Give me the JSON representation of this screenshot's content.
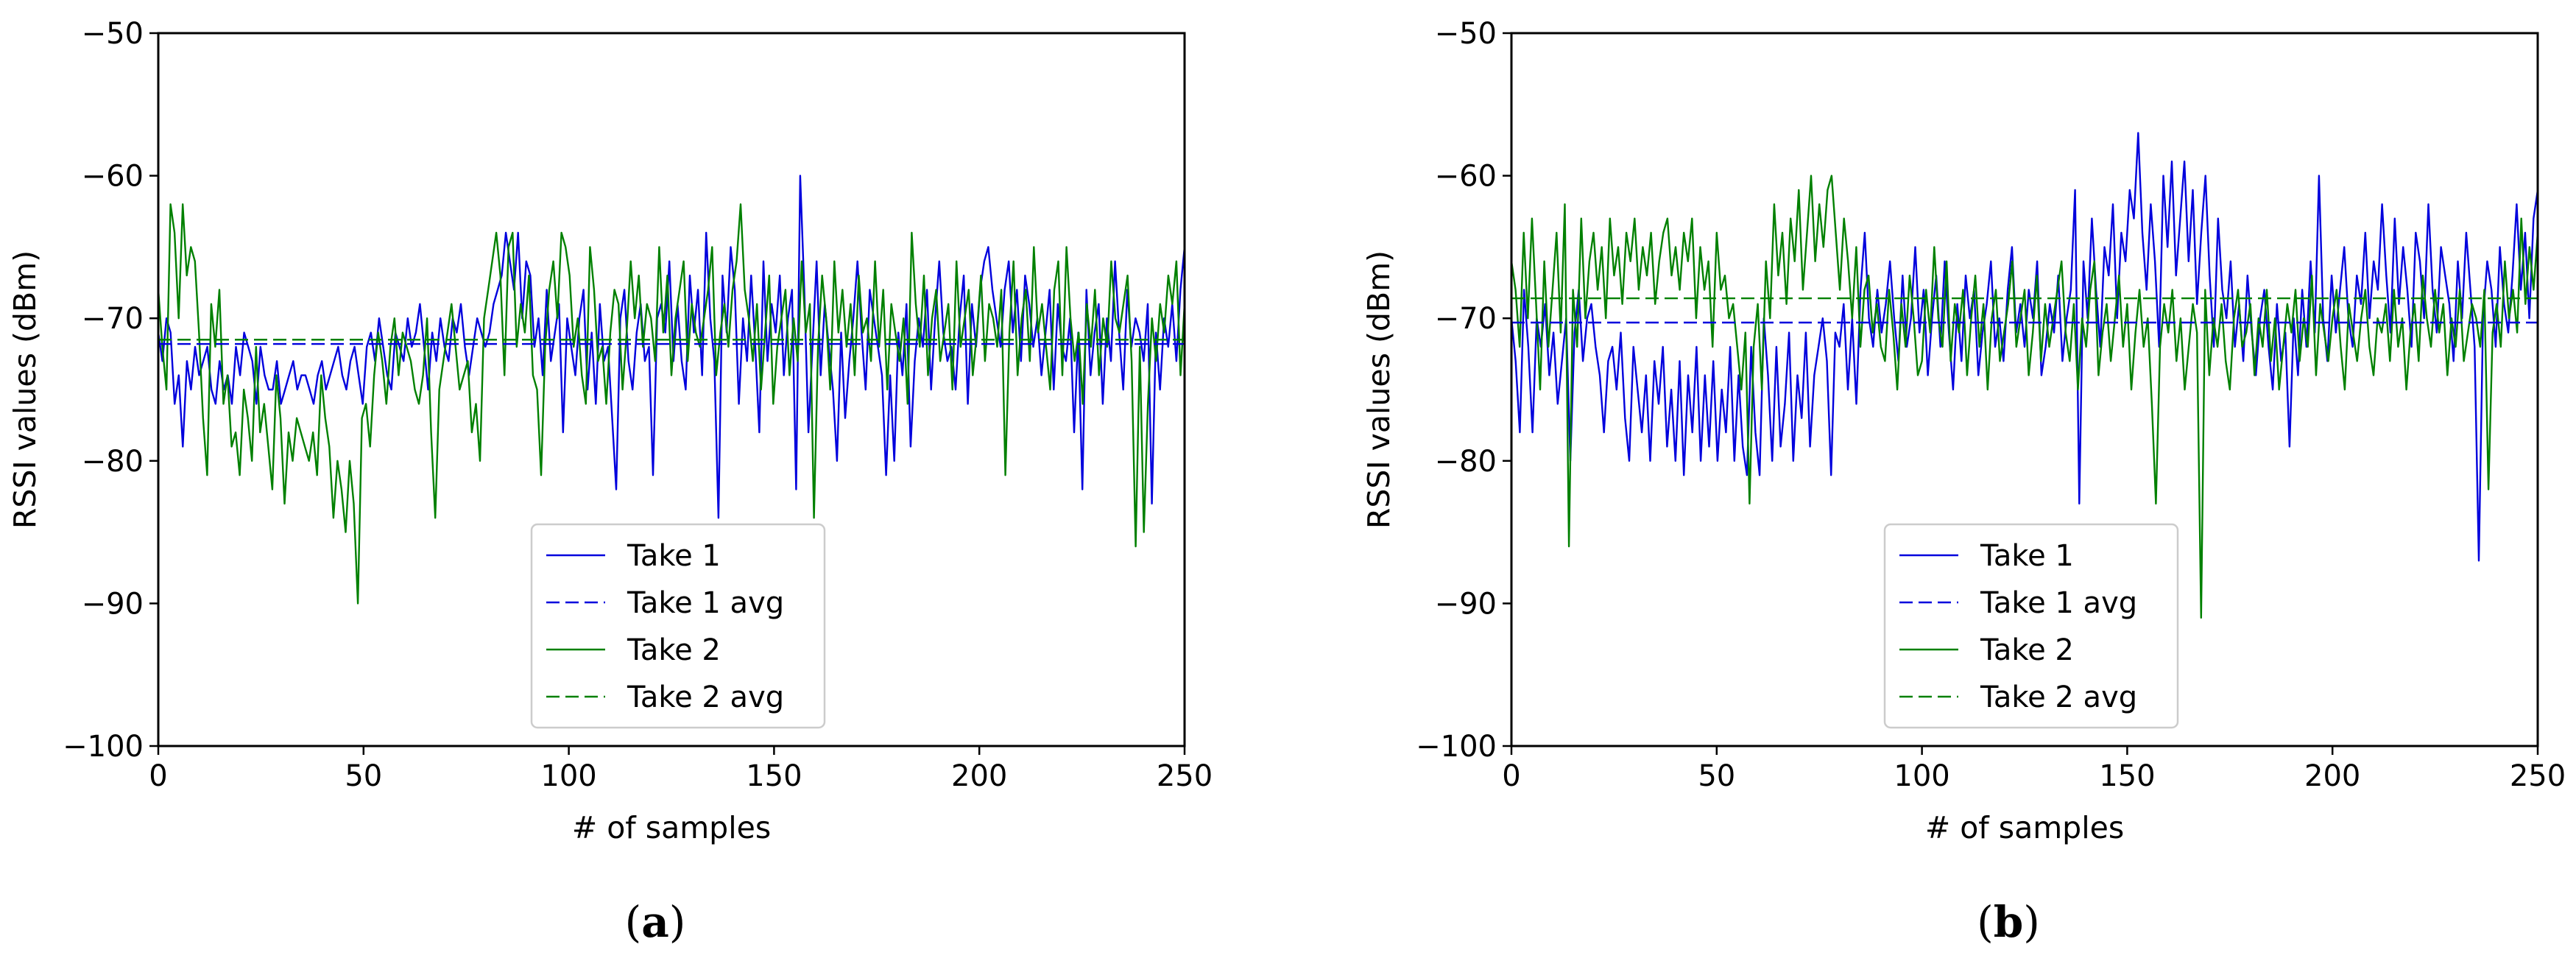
{
  "colors": {
    "take1": "#0000dd",
    "take2": "#008000"
  },
  "chart_data": [
    {
      "type": "line",
      "panel_label": "a",
      "xlabel": "# of samples",
      "ylabel": "RSSI values (dBm)",
      "xlim": [
        0,
        250
      ],
      "ylim": [
        -100,
        -50
      ],
      "xticks": [
        0,
        50,
        100,
        150,
        200,
        250
      ],
      "yticks": [
        -100,
        -90,
        -80,
        -70,
        -60,
        -50
      ],
      "legend_position": "lower-center",
      "series": [
        {
          "name": "Take 1",
          "color": "#0000dd",
          "style": "solid",
          "values": [
            -71,
            -73,
            -70,
            -71,
            -76,
            -74,
            -79,
            -73,
            -75,
            -72,
            -74,
            -73,
            -72,
            -75,
            -76,
            -73,
            -75,
            -74,
            -76,
            -72,
            -74,
            -71,
            -72,
            -73,
            -76,
            -72,
            -74,
            -75,
            -75,
            -73,
            -76,
            -75,
            -74,
            -73,
            -75,
            -74,
            -74,
            -75,
            -76,
            -74,
            -73,
            -75,
            -74,
            -73,
            -72,
            -74,
            -75,
            -73,
            -72,
            -74,
            -76,
            -72,
            -71,
            -73,
            -70,
            -72,
            -74,
            -75,
            -71,
            -72,
            -73,
            -70,
            -72,
            -71,
            -69,
            -72,
            -75,
            -71,
            -73,
            -70,
            -72,
            -73,
            -70,
            -71,
            -69,
            -72,
            -74,
            -72,
            -70,
            -71,
            -72,
            -71,
            -69,
            -68,
            -67,
            -64,
            -66,
            -68,
            -64,
            -70,
            -66,
            -67,
            -72,
            -70,
            -74,
            -68,
            -73,
            -71,
            -69,
            -78,
            -70,
            -72,
            -74,
            -70,
            -68,
            -75,
            -71,
            -76,
            -69,
            -73,
            -72,
            -77,
            -82,
            -70,
            -68,
            -73,
            -75,
            -71,
            -69,
            -73,
            -72,
            -81,
            -70,
            -69,
            -71,
            -66,
            -73,
            -69,
            -73,
            -75,
            -67,
            -71,
            -68,
            -74,
            -64,
            -70,
            -73,
            -84,
            -67,
            -71,
            -65,
            -68,
            -76,
            -70,
            -73,
            -67,
            -72,
            -78,
            -66,
            -73,
            -69,
            -71,
            -67,
            -74,
            -70,
            -68,
            -82,
            -60,
            -68,
            -78,
            -72,
            -66,
            -74,
            -69,
            -72,
            -75,
            -80,
            -71,
            -77,
            -73,
            -70,
            -66,
            -71,
            -75,
            -68,
            -70,
            -72,
            -74,
            -81,
            -74,
            -80,
            -71,
            -74,
            -69,
            -79,
            -73,
            -70,
            -72,
            -68,
            -75,
            -70,
            -66,
            -71,
            -73,
            -72,
            -75,
            -70,
            -67,
            -76,
            -69,
            -72,
            -68,
            -66,
            -65,
            -68,
            -70,
            -72,
            -68,
            -66,
            -71,
            -68,
            -73,
            -67,
            -69,
            -72,
            -70,
            -74,
            -71,
            -68,
            -75,
            -69,
            -72,
            -73,
            -70,
            -78,
            -71,
            -82,
            -68,
            -74,
            -71,
            -69,
            -76,
            -70,
            -73,
            -66,
            -71,
            -75,
            -68,
            -72,
            -70,
            -71,
            -73,
            -69,
            -83,
            -71,
            -75,
            -70,
            -72,
            -69,
            -73,
            -68,
            -65
          ],
          "avg": -71.8
        },
        {
          "name": "Take 1 avg",
          "color": "#0000dd",
          "style": "dashed"
        },
        {
          "name": "Take 2",
          "color": "#008000",
          "style": "solid",
          "values": [
            -68,
            -72,
            -75,
            -62,
            -64,
            -70,
            -62,
            -67,
            -65,
            -66,
            -71,
            -77,
            -81,
            -69,
            -72,
            -68,
            -76,
            -74,
            -79,
            -78,
            -81,
            -75,
            -77,
            -80,
            -72,
            -78,
            -76,
            -79,
            -82,
            -74,
            -77,
            -83,
            -78,
            -80,
            -77,
            -78,
            -79,
            -80,
            -78,
            -81,
            -74,
            -77,
            -79,
            -84,
            -80,
            -82,
            -85,
            -80,
            -83,
            -90,
            -77,
            -76,
            -79,
            -74,
            -71,
            -73,
            -76,
            -72,
            -70,
            -74,
            -71,
            -72,
            -73,
            -75,
            -76,
            -74,
            -70,
            -78,
            -84,
            -75,
            -73,
            -71,
            -69,
            -72,
            -75,
            -74,
            -73,
            -78,
            -76,
            -80,
            -70,
            -68,
            -66,
            -64,
            -67,
            -74,
            -65,
            -64,
            -72,
            -69,
            -71,
            -67,
            -74,
            -75,
            -81,
            -72,
            -68,
            -66,
            -70,
            -64,
            -65,
            -67,
            -72,
            -70,
            -74,
            -76,
            -65,
            -68,
            -73,
            -72,
            -76,
            -71,
            -68,
            -69,
            -75,
            -71,
            -66,
            -70,
            -67,
            -72,
            -69,
            -70,
            -73,
            -65,
            -71,
            -67,
            -74,
            -70,
            -68,
            -66,
            -73,
            -69,
            -71,
            -72,
            -70,
            -68,
            -65,
            -74,
            -71,
            -69,
            -72,
            -68,
            -66,
            -62,
            -68,
            -70,
            -73,
            -69,
            -75,
            -71,
            -67,
            -76,
            -72,
            -70,
            -68,
            -74,
            -70,
            -73,
            -66,
            -71,
            -69,
            -84,
            -72,
            -67,
            -70,
            -75,
            -66,
            -71,
            -68,
            -72,
            -69,
            -74,
            -67,
            -71,
            -70,
            -73,
            -66,
            -72,
            -68,
            -75,
            -69,
            -71,
            -73,
            -70,
            -76,
            -64,
            -69,
            -72,
            -67,
            -74,
            -70,
            -68,
            -73,
            -71,
            -69,
            -75,
            -66,
            -72,
            -70,
            -68,
            -74,
            -71,
            -67,
            -73,
            -69,
            -70,
            -72,
            -68,
            -81,
            -71,
            -66,
            -74,
            -70,
            -68,
            -73,
            -65,
            -71,
            -69,
            -72,
            -75,
            -68,
            -66,
            -74,
            -65,
            -70,
            -73,
            -71,
            -76,
            -69,
            -72,
            -68,
            -74,
            -70,
            -72,
            -66,
            -70,
            -71,
            -69,
            -67,
            -73,
            -86,
            -72,
            -85,
            -76,
            -70,
            -73,
            -69,
            -71,
            -67,
            -69,
            -66,
            -74,
            -69
          ],
          "avg": -71.5
        },
        {
          "name": "Take 2 avg",
          "color": "#008000",
          "style": "dashed"
        }
      ]
    },
    {
      "type": "line",
      "panel_label": "b",
      "xlabel": "# of samples",
      "ylabel": "RSSI values (dBm)",
      "xlim": [
        0,
        250
      ],
      "ylim": [
        -100,
        -50
      ],
      "xticks": [
        0,
        50,
        100,
        150,
        200,
        250
      ],
      "yticks": [
        -100,
        -90,
        -80,
        -70,
        -60,
        -50
      ],
      "legend_position": "lower-center",
      "series": [
        {
          "name": "Take 1",
          "color": "#0000dd",
          "style": "solid",
          "values": [
            -70,
            -73,
            -78,
            -68,
            -72,
            -78,
            -70,
            -72,
            -69,
            -74,
            -71,
            -76,
            -73,
            -70,
            -80,
            -71,
            -68,
            -73,
            -70,
            -69,
            -72,
            -74,
            -78,
            -73,
            -72,
            -75,
            -71,
            -77,
            -80,
            -72,
            -75,
            -78,
            -74,
            -80,
            -73,
            -76,
            -72,
            -79,
            -75,
            -80,
            -73,
            -81,
            -74,
            -78,
            -72,
            -80,
            -74,
            -79,
            -73,
            -80,
            -75,
            -78,
            -72,
            -80,
            -74,
            -79,
            -81,
            -72,
            -78,
            -81,
            -70,
            -74,
            -80,
            -72,
            -79,
            -76,
            -71,
            -80,
            -74,
            -77,
            -71,
            -79,
            -74,
            -72,
            -70,
            -73,
            -81,
            -71,
            -72,
            -69,
            -75,
            -70,
            -76,
            -68,
            -64,
            -70,
            -72,
            -68,
            -71,
            -69,
            -66,
            -70,
            -73,
            -67,
            -72,
            -70,
            -65,
            -71,
            -68,
            -74,
            -70,
            -67,
            -72,
            -66,
            -71,
            -75,
            -69,
            -73,
            -67,
            -70,
            -68,
            -74,
            -71,
            -69,
            -66,
            -72,
            -70,
            -73,
            -68,
            -65,
            -71,
            -69,
            -72,
            -68,
            -70,
            -66,
            -74,
            -72,
            -69,
            -71,
            -67,
            -73,
            -70,
            -68,
            -61,
            -83,
            -66,
            -70,
            -63,
            -68,
            -72,
            -65,
            -67,
            -62,
            -70,
            -64,
            -66,
            -61,
            -63,
            -57,
            -64,
            -68,
            -62,
            -66,
            -72,
            -60,
            -65,
            -59,
            -67,
            -63,
            -59,
            -66,
            -61,
            -69,
            -64,
            -60,
            -67,
            -72,
            -63,
            -68,
            -70,
            -66,
            -72,
            -69,
            -73,
            -67,
            -71,
            -74,
            -70,
            -68,
            -72,
            -75,
            -69,
            -73,
            -71,
            -79,
            -70,
            -74,
            -68,
            -72,
            -66,
            -71,
            -60,
            -70,
            -73,
            -67,
            -71,
            -68,
            -65,
            -70,
            -72,
            -67,
            -69,
            -64,
            -70,
            -66,
            -68,
            -62,
            -67,
            -71,
            -63,
            -69,
            -65,
            -68,
            -72,
            -64,
            -66,
            -70,
            -62,
            -68,
            -71,
            -65,
            -67,
            -69,
            -73,
            -66,
            -70,
            -64,
            -68,
            -72,
            -87,
            -70,
            -66,
            -68,
            -72,
            -65,
            -69,
            -71,
            -67,
            -62,
            -68,
            -64,
            -70,
            -63,
            -61
          ],
          "avg": -70.3
        },
        {
          "name": "Take 1 avg",
          "color": "#0000dd",
          "style": "dashed"
        },
        {
          "name": "Take 2",
          "color": "#008000",
          "style": "solid",
          "values": [
            -66,
            -68,
            -72,
            -64,
            -70,
            -63,
            -69,
            -75,
            -66,
            -72,
            -68,
            -64,
            -71,
            -62,
            -86,
            -68,
            -72,
            -63,
            -70,
            -66,
            -64,
            -68,
            -65,
            -70,
            -63,
            -67,
            -65,
            -69,
            -64,
            -66,
            -63,
            -68,
            -65,
            -67,
            -64,
            -69,
            -66,
            -64,
            -63,
            -67,
            -65,
            -68,
            -64,
            -66,
            -63,
            -70,
            -65,
            -68,
            -66,
            -72,
            -64,
            -68,
            -67,
            -70,
            -69,
            -72,
            -75,
            -71,
            -83,
            -72,
            -69,
            -75,
            -66,
            -70,
            -62,
            -67,
            -64,
            -69,
            -63,
            -66,
            -61,
            -68,
            -64,
            -60,
            -66,
            -62,
            -65,
            -61,
            -60,
            -64,
            -68,
            -63,
            -66,
            -70,
            -65,
            -72,
            -68,
            -67,
            -71,
            -69,
            -72,
            -73,
            -68,
            -71,
            -75,
            -69,
            -72,
            -67,
            -70,
            -74,
            -73,
            -68,
            -71,
            -65,
            -70,
            -72,
            -66,
            -73,
            -69,
            -71,
            -68,
            -74,
            -70,
            -67,
            -72,
            -69,
            -75,
            -70,
            -68,
            -73,
            -71,
            -69,
            -66,
            -72,
            -70,
            -68,
            -74,
            -71,
            -67,
            -73,
            -69,
            -72,
            -70,
            -68,
            -66,
            -71,
            -73,
            -69,
            -75,
            -70,
            -72,
            -68,
            -66,
            -74,
            -71,
            -69,
            -73,
            -70,
            -67,
            -72,
            -69,
            -75,
            -71,
            -68,
            -72,
            -70,
            -76,
            -83,
            -72,
            -69,
            -71,
            -68,
            -73,
            -70,
            -75,
            -72,
            -69,
            -71,
            -91,
            -68,
            -74,
            -70,
            -72,
            -69,
            -73,
            -75,
            -70,
            -68,
            -72,
            -71,
            -69,
            -74,
            -70,
            -72,
            -68,
            -73,
            -70,
            -75,
            -72,
            -69,
            -71,
            -68,
            -73,
            -70,
            -72,
            -67,
            -74,
            -69,
            -71,
            -73,
            -70,
            -68,
            -72,
            -75,
            -69,
            -71,
            -73,
            -70,
            -68,
            -72,
            -74,
            -70,
            -71,
            -69,
            -73,
            -68,
            -72,
            -70,
            -75,
            -71,
            -69,
            -73,
            -67,
            -70,
            -72,
            -68,
            -71,
            -69,
            -74,
            -70,
            -72,
            -68,
            -73,
            -71,
            -69,
            -70,
            -72,
            -68,
            -82,
            -71,
            -69,
            -72,
            -66,
            -70,
            -68,
            -71,
            -63,
            -69,
            -65,
            -68,
            -64
          ],
          "avg": -68.6
        },
        {
          "name": "Take 2 avg",
          "color": "#008000",
          "style": "dashed"
        }
      ]
    }
  ]
}
